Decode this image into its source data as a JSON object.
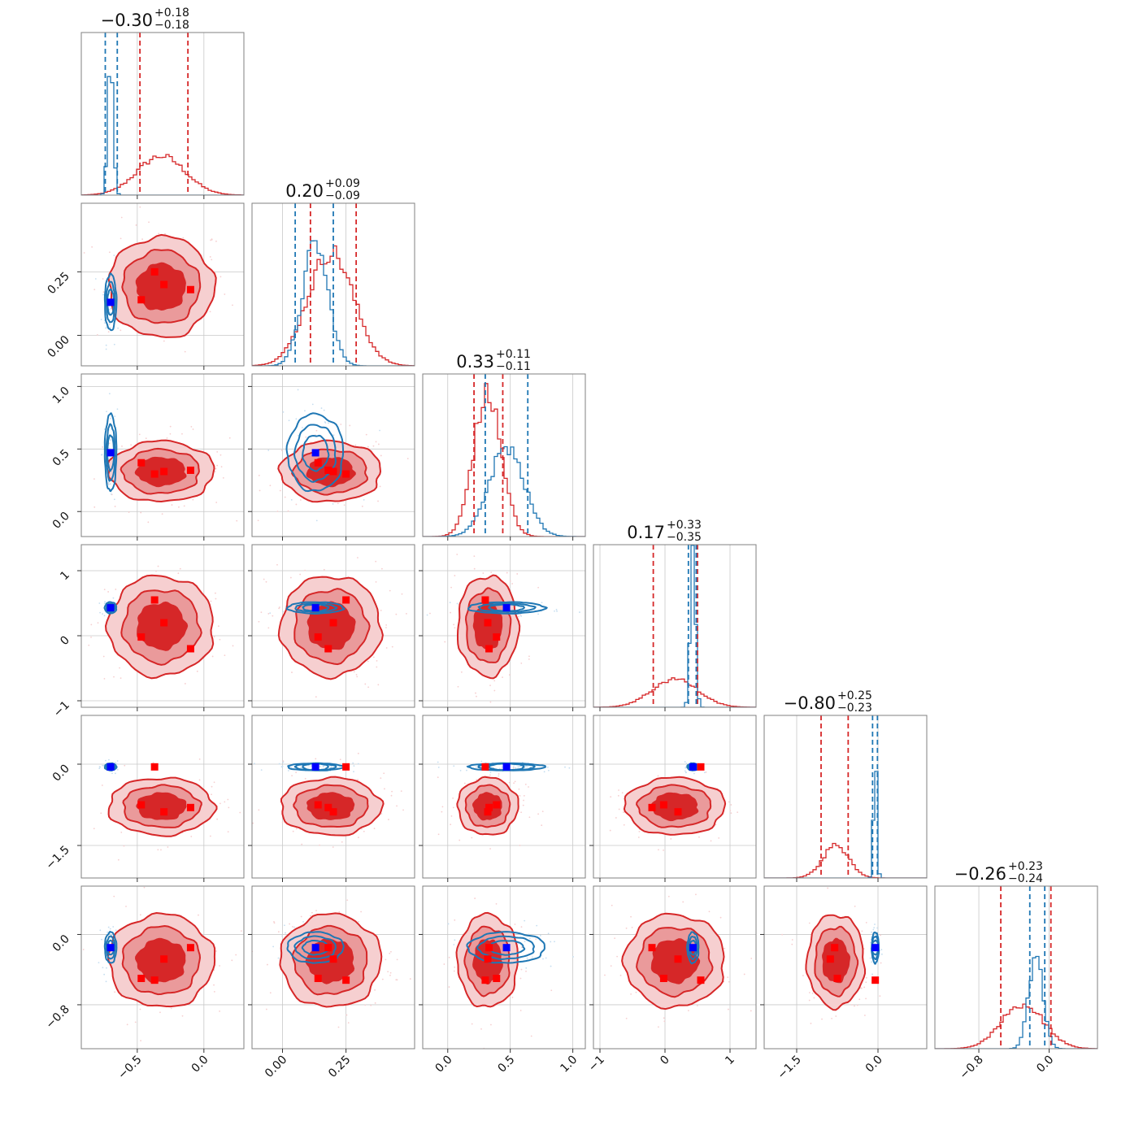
{
  "colors": {
    "red": "#d62728",
    "red_mid": "#ea9a9b",
    "red_light": "#f6cfd0",
    "blue": "#1f77b4",
    "blue_light": "#c6def0",
    "marker_red": "#ff0000",
    "marker_blue": "#0000ff"
  },
  "chart_data": {
    "type": "corner",
    "grid": true,
    "n_params": 6,
    "titles": [
      {
        "median": "−0.30",
        "plus": "+0.18",
        "minus": "−0.18"
      },
      {
        "median": "0.20",
        "plus": "+0.09",
        "minus": "−0.09"
      },
      {
        "median": "0.33",
        "plus": "+0.11",
        "minus": "−0.11"
      },
      {
        "median": "0.17",
        "plus": "+0.33",
        "minus": "−0.35"
      },
      {
        "median": "−0.80",
        "plus": "+0.25",
        "minus": "−0.23"
      },
      {
        "median": "−0.26",
        "plus": "+0.23",
        "minus": "−0.24"
      }
    ],
    "ranges": [
      [
        -0.92,
        0.3
      ],
      [
        -0.12,
        0.52
      ],
      [
        -0.2,
        1.1
      ],
      [
        -1.1,
        1.4
      ],
      [
        -2.1,
        0.9
      ],
      [
        -1.3,
        0.55
      ]
    ],
    "ticks": [
      {
        "values": [
          -0.5,
          0.0
        ],
        "labels": [
          "−0.5",
          "0.0"
        ]
      },
      {
        "values": [
          0.0,
          0.25
        ],
        "labels": [
          "0.00",
          "0.25"
        ]
      },
      {
        "values": [
          0.0,
          0.5,
          1.0
        ],
        "labels": [
          "0.0",
          "0.5",
          "1.0"
        ]
      },
      {
        "values": [
          -1,
          0,
          1
        ],
        "labels": [
          "−1",
          "0",
          "1"
        ]
      },
      {
        "values": [
          -1.5,
          0.0
        ],
        "labels": [
          "−1.5",
          "0.0"
        ]
      },
      {
        "values": [
          -0.8,
          0.0
        ],
        "labels": [
          "−0.8",
          "0.0"
        ]
      }
    ],
    "red_posterior": {
      "center": [
        -0.32,
        0.19,
        0.32,
        0.15,
        -0.78,
        -0.3
      ],
      "sigma": [
        0.18,
        0.09,
        0.11,
        0.35,
        0.24,
        0.24
      ],
      "quantile_lines": [
        [
          -0.48,
          -0.12
        ],
        [
          0.11,
          0.29
        ],
        [
          0.21,
          0.44
        ],
        [
          -0.18,
          0.5
        ],
        [
          -1.05,
          -0.55
        ],
        [
          -0.55,
          0.02
        ]
      ],
      "extra_mode_dim5_at_param5": -0.05
    },
    "blue_posterior": {
      "center": [
        -0.7,
        0.13,
        0.47,
        0.43,
        -0.05,
        -0.15
      ],
      "sigma": [
        0.02,
        0.05,
        0.14,
        0.04,
        0.03,
        0.08
      ],
      "quantile_lines": [
        [
          -0.74,
          -0.65
        ],
        [
          0.05,
          0.2
        ],
        [
          0.3,
          0.64
        ],
        [
          0.36,
          0.48
        ],
        [
          -0.1,
          -0.01
        ],
        [
          -0.22,
          -0.05
        ]
      ]
    },
    "true_markers_red": [
      [
        -0.1,
        0.18,
        0.33,
        -0.2,
        -0.8,
        -0.15
      ],
      [
        -0.47,
        0.14,
        0.39,
        -0.02,
        -0.75,
        -0.5
      ],
      [
        -0.3,
        0.2,
        0.32,
        0.2,
        -0.88,
        -0.28
      ],
      [
        -0.37,
        0.25,
        0.3,
        0.55,
        -0.05,
        -0.52
      ]
    ],
    "true_marker_blue": [
      -0.7,
      0.13,
      0.47,
      0.43,
      -0.05,
      -0.15
    ]
  }
}
